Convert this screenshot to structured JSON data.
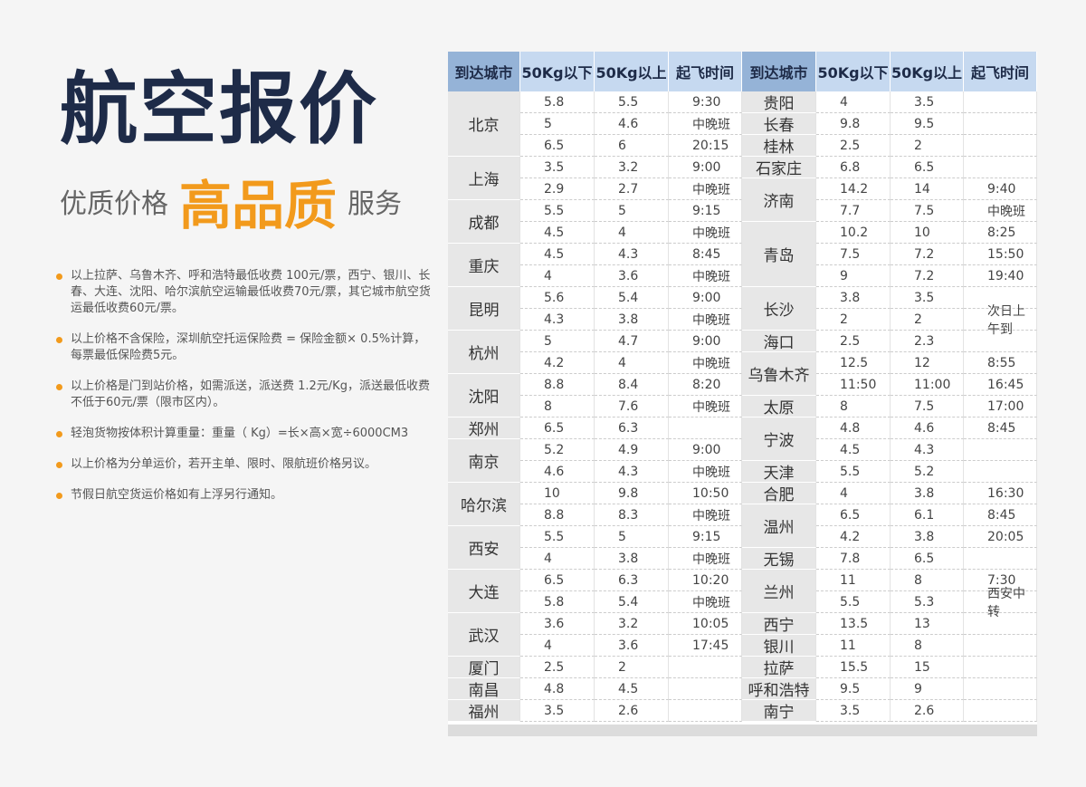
{
  "header": {
    "title": "航空报价",
    "slogan": [
      "优质价格",
      "高品质",
      "服务"
    ]
  },
  "notes": [
    "以上拉萨、乌鲁木齐、呼和浩特最低收费 100元/票，西宁、银川、长春、大连、沈阳、哈尔滨航空运输最低收费70元/票，其它城市航空货运最低收费60元/票。",
    "以上价格不含保险，深圳航空托运保险费 = 保险金额× 0.5%计算，每票最低保险费5元。",
    "以上价格是门到站价格，如需派送，派送费 1.2元/Kg，派送最低收费不低于60元/票（限市区内）。",
    "轻泡货物按体积计算重量：重量（ Kg）=长×高×宽÷6000CM3",
    "以上价格为分单运价，若开主单、限时、限航班价格另议。",
    "节假日航空货运价格如有上浮另行通知。"
  ],
  "table": {
    "headers": [
      "到达城市",
      "50Kg以下",
      "50Kg以上",
      "起飞时间",
      "到达城市",
      "50Kg以下",
      "50Kg以上",
      "起飞时间"
    ],
    "left": [
      {
        "city": "北京",
        "rows": [
          [
            "5.8",
            "5.5",
            "9:30"
          ],
          [
            "5",
            "4.6",
            "中晚班"
          ],
          [
            "6.5",
            "6",
            "20:15"
          ]
        ]
      },
      {
        "city": "上海",
        "rows": [
          [
            "3.5",
            "3.2",
            "9:00"
          ],
          [
            "2.9",
            "2.7",
            "中晚班"
          ]
        ]
      },
      {
        "city": "成都",
        "rows": [
          [
            "5.5",
            "5",
            "9:15"
          ],
          [
            "4.5",
            "4",
            "中晚班"
          ]
        ]
      },
      {
        "city": "重庆",
        "rows": [
          [
            "4.5",
            "4.3",
            "8:45"
          ],
          [
            "4",
            "3.6",
            "中晚班"
          ]
        ]
      },
      {
        "city": "昆明",
        "rows": [
          [
            "5.6",
            "5.4",
            "9:00"
          ],
          [
            "4.3",
            "3.8",
            "中晚班"
          ]
        ]
      },
      {
        "city": "杭州",
        "rows": [
          [
            "5",
            "4.7",
            "9:00"
          ],
          [
            "4.2",
            "4",
            "中晚班"
          ]
        ]
      },
      {
        "city": "沈阳",
        "rows": [
          [
            "8.8",
            "8.4",
            "8:20"
          ],
          [
            "8",
            "7.6",
            "中晚班"
          ]
        ]
      },
      {
        "city": "郑州",
        "rows": [
          [
            "6.5",
            "6.3"
          ]
        ]
      },
      {
        "city": "南京",
        "rows": [
          [
            "5.2",
            "4.9",
            "9:00"
          ],
          [
            "4.6",
            "4.3",
            "中晚班"
          ]
        ]
      },
      {
        "city": "哈尔滨",
        "rows": [
          [
            "10",
            "9.8",
            "10:50"
          ],
          [
            "8.8",
            "8.3",
            "中晚班"
          ]
        ]
      },
      {
        "city": "西安",
        "rows": [
          [
            "5.5",
            "5",
            "9:15"
          ],
          [
            "4",
            "3.8",
            "中晚班"
          ]
        ]
      },
      {
        "city": "大连",
        "rows": [
          [
            "6.5",
            "6.3",
            "10:20"
          ],
          [
            "5.8",
            "5.4",
            "中晚班"
          ]
        ]
      },
      {
        "city": "武汉",
        "rows": [
          [
            "3.6",
            "3.2",
            "10:05"
          ],
          [
            "4",
            "3.6",
            "17:45"
          ]
        ]
      },
      {
        "city": "厦门",
        "rows": [
          [
            "2.5",
            "2"
          ]
        ]
      },
      {
        "city": "南昌",
        "rows": [
          [
            "4.8",
            "4.5"
          ]
        ]
      },
      {
        "city": "福州",
        "rows": [
          [
            "3.5",
            "2.6"
          ]
        ]
      }
    ],
    "right": [
      {
        "city": "贵阳",
        "rows": [
          [
            "4",
            "3.5"
          ]
        ]
      },
      {
        "city": "长春",
        "rows": [
          [
            "9.8",
            "9.5"
          ]
        ]
      },
      {
        "city": "桂林",
        "rows": [
          [
            "2.5",
            "2"
          ]
        ]
      },
      {
        "city": "石家庄",
        "rows": [
          [
            "6.8",
            "6.5"
          ]
        ]
      },
      {
        "city": "济南",
        "rows": [
          [
            "14.2",
            "14",
            "9:40"
          ],
          [
            "7.7",
            "7.5",
            "中晚班"
          ]
        ]
      },
      {
        "city": "青岛",
        "rows": [
          [
            "10.2",
            "10",
            "8:25"
          ],
          [
            "7.5",
            "7.2",
            "15:50"
          ],
          [
            "9",
            "7.2",
            "19:40"
          ]
        ]
      },
      {
        "city": "长沙",
        "rows": [
          [
            "3.8",
            "3.5"
          ],
          [
            "2",
            "2",
            "次日上午到"
          ]
        ]
      },
      {
        "city": "海口",
        "rows": [
          [
            "2.5",
            "2.3"
          ]
        ]
      },
      {
        "city": "乌鲁木齐",
        "rows": [
          [
            "12.5",
            "12",
            "8:55"
          ],
          [
            "11:50",
            "11:00",
            "16:45"
          ]
        ]
      },
      {
        "city": "太原",
        "rows": [
          [
            "8",
            "7.5",
            "17:00"
          ]
        ]
      },
      {
        "city": "宁波",
        "rows": [
          [
            "4.8",
            "4.6",
            "8:45"
          ],
          [
            "4.5",
            "4.3"
          ]
        ]
      },
      {
        "city": "天津",
        "rows": [
          [
            "5.5",
            "5.2"
          ]
        ]
      },
      {
        "city": "合肥",
        "rows": [
          [
            "4",
            "3.8",
            "16:30"
          ]
        ]
      },
      {
        "city": "温州",
        "rows": [
          [
            "6.5",
            "6.1",
            "8:45"
          ],
          [
            "4.2",
            "3.8",
            "20:05"
          ]
        ]
      },
      {
        "city": "无锡",
        "rows": [
          [
            "7.8",
            "6.5"
          ]
        ]
      },
      {
        "city": "兰州",
        "rows": [
          [
            "11",
            "8",
            "7:30"
          ],
          [
            "5.5",
            "5.3",
            "西安中转"
          ]
        ]
      },
      {
        "city": "西宁",
        "rows": [
          [
            "13.5",
            "13"
          ]
        ]
      },
      {
        "city": "银川",
        "rows": [
          [
            "11",
            "8"
          ]
        ]
      },
      {
        "city": "拉萨",
        "rows": [
          [
            "15.5",
            "15"
          ]
        ]
      },
      {
        "city": "呼和浩特",
        "rows": [
          [
            "9.5",
            "9"
          ]
        ]
      },
      {
        "city": "南宁",
        "rows": [
          [
            "3.5",
            "2.6"
          ]
        ]
      }
    ]
  }
}
